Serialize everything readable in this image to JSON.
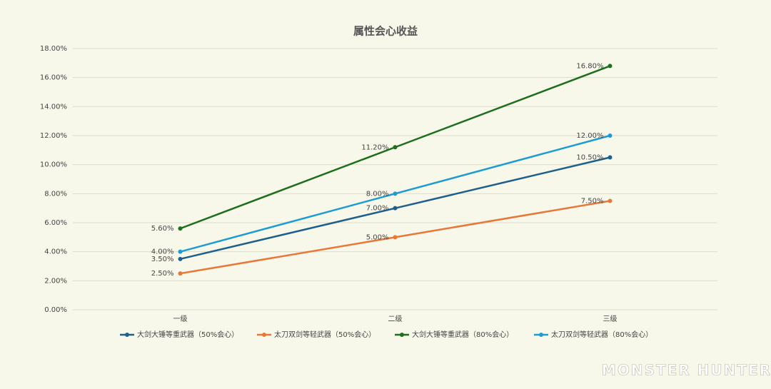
{
  "chart_data": {
    "type": "line",
    "title": "属性会心收益",
    "categories": [
      "一级",
      "二级",
      "三级"
    ],
    "series": [
      {
        "name": "大剑大锤等重武器（50%会心）",
        "color": "#1f5f8b",
        "values": [
          3.5,
          7,
          10.5
        ],
        "value_labels": [
          "3.50%",
          "7.00%",
          "10.50%"
        ]
      },
      {
        "name": "太刀双剑等轻武器（50%会心）",
        "color": "#e8773a",
        "values": [
          2.5,
          5,
          7.5
        ],
        "value_labels": [
          "2.50%",
          "5.00%",
          "7.50%"
        ]
      },
      {
        "name": "大剑大锤等重武器（80%会心）",
        "color": "#1e6e1e",
        "values": [
          5.6,
          11.2,
          16.8
        ],
        "value_labels": [
          "5.60%",
          "11.20%",
          "16.80%"
        ]
      },
      {
        "name": "太刀双剑等轻武器（80%会心）",
        "color": "#1e9bd0",
        "values": [
          4,
          8,
          12
        ],
        "value_labels": [
          "4.00%",
          "8.00%",
          "12.00%"
        ]
      }
    ],
    "ylim": [
      0,
      18
    ],
    "yticks": [
      {
        "value": 0,
        "label": "0.00%"
      },
      {
        "value": 2,
        "label": "2.00%"
      },
      {
        "value": 4,
        "label": "4.00%"
      },
      {
        "value": 6,
        "label": "6.00%"
      },
      {
        "value": 8,
        "label": "8.00%"
      },
      {
        "value": 10,
        "label": "10.00%"
      },
      {
        "value": 12,
        "label": "12.00%"
      },
      {
        "value": 14,
        "label": "14.00%"
      },
      {
        "value": 16,
        "label": "16.00%"
      },
      {
        "value": 18,
        "label": "18.00%"
      }
    ],
    "grid": true,
    "legend": "bottom"
  },
  "watermark": "MONSTER HUNTER"
}
